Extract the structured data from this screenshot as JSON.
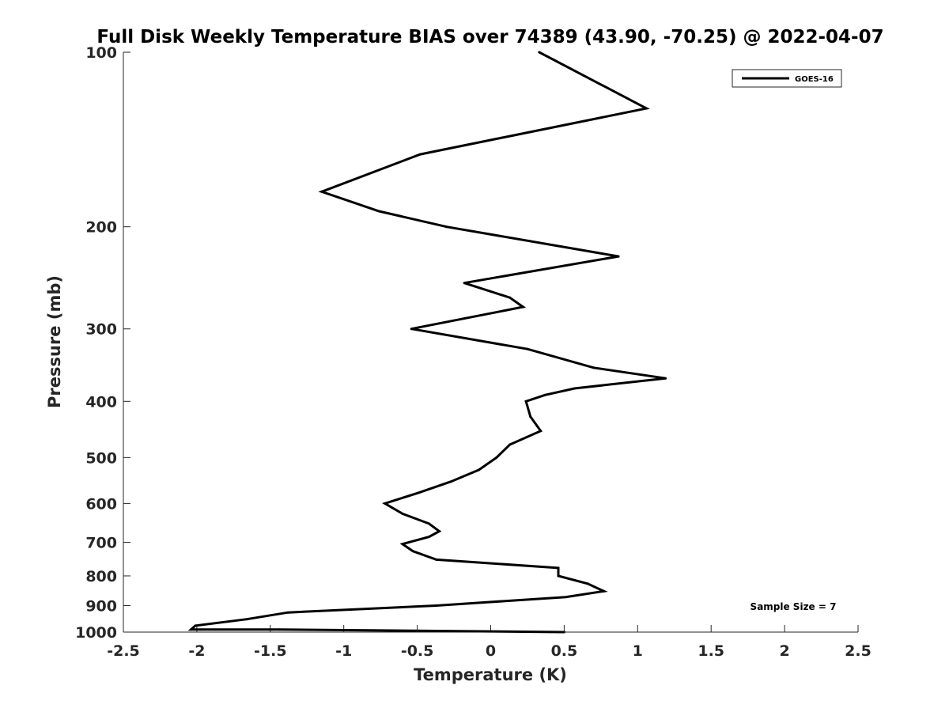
{
  "chart_data": {
    "type": "line",
    "title": "Full Disk Weekly Temperature BIAS over 74389 (43.90, -70.25) @ 2022-04-07",
    "xlabel": "Temperature (K)",
    "ylabel": "Pressure (mb)",
    "xlim": [
      -2.5,
      2.5
    ],
    "ylim": [
      100,
      1000
    ],
    "y_scale": "log",
    "y_reversed": true,
    "grid": false,
    "legend_position": "top-right",
    "x_ticks": [
      -2.5,
      -2,
      -1.5,
      -1,
      -0.5,
      0,
      0.5,
      1,
      1.5,
      2,
      2.5
    ],
    "x_tick_labels": [
      "-2.5",
      "-2",
      "-1.5",
      "-1",
      "-0.5",
      "0",
      "0.5",
      "1",
      "1.5",
      "2",
      "2.5"
    ],
    "y_ticks": [
      100,
      200,
      300,
      400,
      500,
      600,
      700,
      800,
      900,
      1000
    ],
    "y_tick_labels": [
      "100",
      "200",
      "300",
      "400",
      "500",
      "600",
      "700",
      "800",
      "900",
      "1000"
    ],
    "series": [
      {
        "name": "GOES-16",
        "color": "#000000",
        "points": [
          [
            0.33,
            100
          ],
          [
            1.06,
            125
          ],
          [
            -0.48,
            150
          ],
          [
            -1.15,
            174
          ],
          [
            -0.76,
            188
          ],
          [
            -0.3,
            200
          ],
          [
            0.87,
            225
          ],
          [
            -0.18,
            250
          ],
          [
            0.13,
            265
          ],
          [
            0.22,
            275
          ],
          [
            -0.54,
            300
          ],
          [
            0.25,
            325
          ],
          [
            0.7,
            350
          ],
          [
            1.19,
            365
          ],
          [
            0.57,
            380
          ],
          [
            0.37,
            390
          ],
          [
            0.24,
            400
          ],
          [
            0.27,
            425
          ],
          [
            0.34,
            450
          ],
          [
            0.13,
            475
          ],
          [
            0.04,
            500
          ],
          [
            -0.08,
            525
          ],
          [
            -0.27,
            550
          ],
          [
            -0.49,
            575
          ],
          [
            -0.72,
            600
          ],
          [
            -0.6,
            625
          ],
          [
            -0.42,
            650
          ],
          [
            -0.35,
            670
          ],
          [
            -0.42,
            685
          ],
          [
            -0.6,
            705
          ],
          [
            -0.53,
            725
          ],
          [
            -0.37,
            750
          ],
          [
            0.46,
            775
          ],
          [
            0.46,
            800
          ],
          [
            0.66,
            825
          ],
          [
            0.77,
            850
          ],
          [
            0.51,
            870
          ],
          [
            -0.37,
            900
          ],
          [
            -1.38,
            925
          ],
          [
            -1.66,
            950
          ],
          [
            -2.01,
            975
          ],
          [
            -2.04,
            990
          ],
          [
            -1.44,
            990
          ],
          [
            -0.45,
            995
          ],
          [
            0.5,
            1000
          ]
        ]
      }
    ],
    "annotation": "Sample Size = 7"
  }
}
